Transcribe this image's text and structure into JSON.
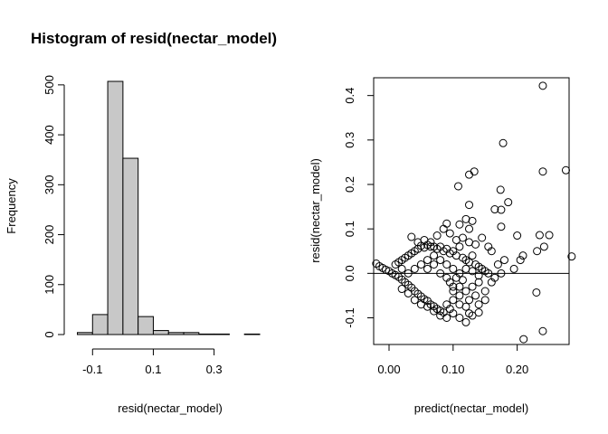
{
  "chart_data": [
    {
      "type": "bar",
      "subtype": "histogram",
      "title": "Histogram of resid(nectar_model)",
      "xlabel": "resid(nectar_model)",
      "ylabel": "Frequency",
      "bin_width": 0.05,
      "bins": [
        {
          "x0": -0.15,
          "x1": -0.1,
          "count": 4
        },
        {
          "x0": -0.1,
          "x1": -0.05,
          "count": 40
        },
        {
          "x0": -0.05,
          "x1": 0.0,
          "count": 507
        },
        {
          "x0": 0.0,
          "x1": 0.05,
          "count": 353
        },
        {
          "x0": 0.05,
          "x1": 0.1,
          "count": 36
        },
        {
          "x0": 0.1,
          "x1": 0.15,
          "count": 8
        },
        {
          "x0": 0.15,
          "x1": 0.2,
          "count": 4
        },
        {
          "x0": 0.2,
          "x1": 0.25,
          "count": 4
        },
        {
          "x0": 0.25,
          "x1": 0.3,
          "count": 1
        },
        {
          "x0": 0.3,
          "x1": 0.35,
          "count": 1
        },
        {
          "x0": 0.35,
          "x1": 0.4,
          "count": 0
        },
        {
          "x0": 0.4,
          "x1": 0.45,
          "count": 1
        }
      ],
      "xlim": [
        -0.15,
        0.45
      ],
      "ylim": [
        0,
        507
      ],
      "xticks": [
        -0.1,
        0.1,
        0.3
      ],
      "xtick_labels": [
        "-0.1",
        "0.1",
        "0.3"
      ],
      "yticks": [
        0,
        100,
        200,
        300,
        400,
        500
      ],
      "ytick_labels": [
        "0",
        "100",
        "200",
        "300",
        "400",
        "500"
      ],
      "bar_fill": "#c8c8c8",
      "grid": false
    },
    {
      "type": "scatter",
      "xlabel": "predict(nectar_model)",
      "ylabel": "resid(nectar_model)",
      "xlim": [
        -0.024,
        0.281
      ],
      "ylim": [
        -0.16,
        0.44
      ],
      "xticks": [
        0.0,
        0.1,
        0.2
      ],
      "xtick_labels": [
        "0.00",
        "0.10",
        "0.20"
      ],
      "yticks": [
        -0.1,
        0.0,
        0.1,
        0.2,
        0.3,
        0.4
      ],
      "ytick_labels": [
        "-0.1",
        "0.0",
        "0.1",
        "0.2",
        "0.3",
        "0.4"
      ],
      "reference_line_y": 0,
      "marker": "open-circle",
      "grid": false,
      "points": [
        [
          0.24,
          0.422
        ],
        [
          0.178,
          0.293
        ],
        [
          0.24,
          0.229
        ],
        [
          0.276,
          0.232
        ],
        [
          0.133,
          0.229
        ],
        [
          0.125,
          0.222
        ],
        [
          0.186,
          0.16
        ],
        [
          0.174,
          0.188
        ],
        [
          0.175,
          0.143
        ],
        [
          0.165,
          0.144
        ],
        [
          0.108,
          0.196
        ],
        [
          0.125,
          0.154
        ],
        [
          0.175,
          0.105
        ],
        [
          0.13,
          0.118
        ],
        [
          0.12,
          0.122
        ],
        [
          0.09,
          0.112
        ],
        [
          0.25,
          0.086
        ],
        [
          0.235,
          0.086
        ],
        [
          0.231,
          0.05
        ],
        [
          0.242,
          0.06
        ],
        [
          0.2,
          0.085
        ],
        [
          0.285,
          0.038
        ],
        [
          0.209,
          0.04
        ],
        [
          0.205,
          0.03
        ],
        [
          0.18,
          0.03
        ],
        [
          0.17,
          0.02
        ],
        [
          0.195,
          0.01
        ],
        [
          0.175,
          0.0
        ],
        [
          0.165,
          -0.01
        ],
        [
          0.16,
          -0.02
        ],
        [
          0.15,
          -0.04
        ],
        [
          0.15,
          -0.06
        ],
        [
          0.14,
          -0.07
        ],
        [
          0.23,
          -0.043
        ],
        [
          0.24,
          -0.13
        ],
        [
          0.21,
          -0.148
        ],
        [
          0.14,
          -0.088
        ],
        [
          0.13,
          -0.095
        ],
        [
          0.125,
          -0.09
        ],
        [
          0.11,
          -0.1
        ],
        [
          0.12,
          -0.11
        ],
        [
          0.1,
          -0.09
        ],
        [
          0.095,
          -0.08
        ],
        [
          0.09,
          -0.07
        ],
        [
          -0.02,
          0.022
        ],
        [
          -0.015,
          0.016
        ],
        [
          -0.01,
          0.012
        ],
        [
          -0.005,
          0.008
        ],
        [
          0.0,
          0.005
        ],
        [
          0.005,
          0.0
        ],
        [
          0.01,
          -0.004
        ],
        [
          0.015,
          -0.008
        ],
        [
          0.02,
          -0.014
        ],
        [
          0.025,
          -0.02
        ],
        [
          0.03,
          -0.026
        ],
        [
          0.035,
          -0.032
        ],
        [
          0.04,
          -0.04
        ],
        [
          0.045,
          -0.046
        ],
        [
          0.05,
          -0.052
        ],
        [
          0.055,
          -0.058
        ],
        [
          0.06,
          -0.062
        ],
        [
          0.065,
          -0.07
        ],
        [
          0.07,
          -0.074
        ],
        [
          0.075,
          -0.08
        ],
        [
          0.08,
          -0.084
        ],
        [
          0.085,
          -0.088
        ],
        [
          0.01,
          0.02
        ],
        [
          0.015,
          0.025
        ],
        [
          0.02,
          0.03
        ],
        [
          0.025,
          0.035
        ],
        [
          0.03,
          0.04
        ],
        [
          0.035,
          0.045
        ],
        [
          0.04,
          0.05
        ],
        [
          0.045,
          0.055
        ],
        [
          0.05,
          0.062
        ],
        [
          0.055,
          0.058
        ],
        [
          0.06,
          0.064
        ],
        [
          0.065,
          0.06
        ],
        [
          0.07,
          0.06
        ],
        [
          0.075,
          0.055
        ],
        [
          0.08,
          0.06
        ],
        [
          0.085,
          0.05
        ],
        [
          0.09,
          0.055
        ],
        [
          0.095,
          0.045
        ],
        [
          0.1,
          0.05
        ],
        [
          0.105,
          0.04
        ],
        [
          0.11,
          0.06
        ],
        [
          0.115,
          0.035
        ],
        [
          0.12,
          0.03
        ],
        [
          0.125,
          0.025
        ],
        [
          0.13,
          0.04
        ],
        [
          0.135,
          0.02
        ],
        [
          0.14,
          0.015
        ],
        [
          0.145,
          0.01
        ],
        [
          0.15,
          0.005
        ],
        [
          0.155,
          0.0
        ],
        [
          0.035,
          0.082
        ],
        [
          0.045,
          0.07
        ],
        [
          0.055,
          0.075
        ],
        [
          0.065,
          0.07
        ],
        [
          0.075,
          0.085
        ],
        [
          0.085,
          0.1
        ],
        [
          0.095,
          0.09
        ],
        [
          0.105,
          0.075
        ],
        [
          0.115,
          0.08
        ],
        [
          0.125,
          0.07
        ],
        [
          0.135,
          0.065
        ],
        [
          0.145,
          0.08
        ],
        [
          0.155,
          0.06
        ],
        [
          0.16,
          0.05
        ],
        [
          0.125,
          0.1
        ],
        [
          0.11,
          0.11
        ],
        [
          0.04,
          -0.06
        ],
        [
          0.05,
          -0.07
        ],
        [
          0.06,
          -0.075
        ],
        [
          0.07,
          -0.085
        ],
        [
          0.08,
          -0.095
        ],
        [
          0.09,
          -0.1
        ],
        [
          0.1,
          -0.06
        ],
        [
          0.11,
          -0.05
        ],
        [
          0.12,
          -0.04
        ],
        [
          0.13,
          -0.03
        ],
        [
          0.14,
          -0.02
        ],
        [
          0.1,
          -0.03
        ],
        [
          0.095,
          -0.02
        ],
        [
          0.105,
          -0.01
        ],
        [
          0.115,
          -0.015
        ],
        [
          0.125,
          -0.06
        ],
        [
          0.135,
          -0.05
        ],
        [
          0.11,
          -0.07
        ],
        [
          0.12,
          -0.075
        ],
        [
          0.03,
          -0.045
        ],
        [
          0.02,
          -0.035
        ],
        [
          0.06,
          0.01
        ],
        [
          0.07,
          0.02
        ],
        [
          0.08,
          0.03
        ],
        [
          0.09,
          0.02
        ],
        [
          0.1,
          0.01
        ],
        [
          0.11,
          0.0
        ],
        [
          0.12,
          0.01
        ],
        [
          0.13,
          0.005
        ],
        [
          0.14,
          -0.005
        ],
        [
          0.02,
          0.01
        ],
        [
          0.03,
          0.0
        ],
        [
          0.04,
          0.01
        ],
        [
          0.05,
          0.02
        ],
        [
          0.06,
          0.03
        ],
        [
          0.07,
          0.04
        ],
        [
          0.08,
          0.0
        ],
        [
          0.09,
          -0.01
        ],
        [
          0.1,
          -0.04
        ],
        [
          0.11,
          -0.03
        ]
      ]
    }
  ]
}
